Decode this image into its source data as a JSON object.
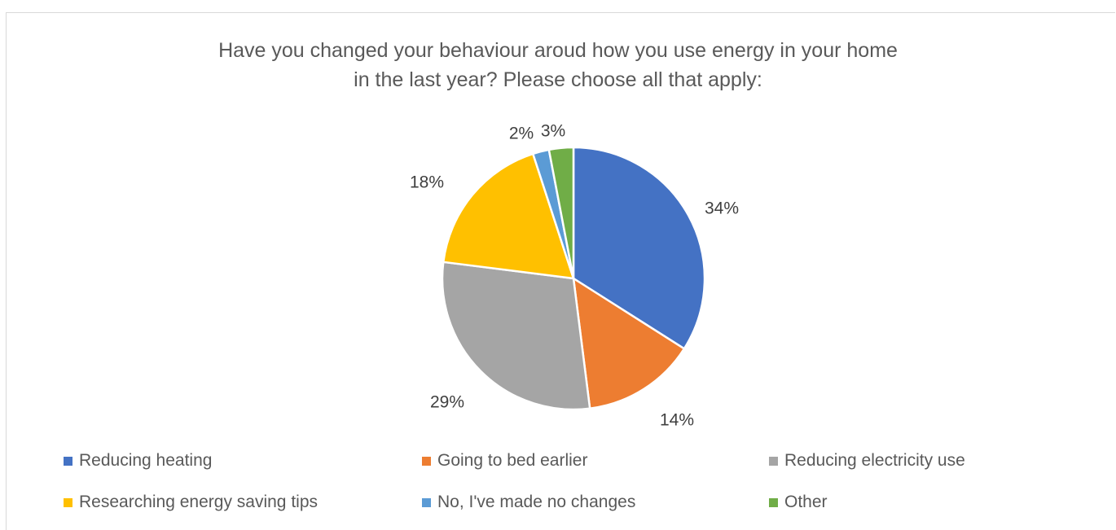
{
  "chart_data": {
    "type": "pie",
    "title_lines": [
      "Have you changed your behaviour aroud how you use energy in your home",
      "in the last year? Please choose all that apply:"
    ],
    "categories": [
      "Reducing heating",
      "Going to bed earlier",
      "Reducing electricity use",
      "Researching energy saving tips",
      "No, I've made no changes",
      "Other"
    ],
    "values": [
      34,
      14,
      29,
      18,
      2,
      3
    ],
    "data_labels": [
      "34%",
      "14%",
      "29%",
      "18%",
      "2%",
      "3%"
    ],
    "colors": [
      "#4472c4",
      "#ed7d31",
      "#a5a5a5",
      "#ffc000",
      "#5b9bd5",
      "#70ad47"
    ],
    "legend_position": "bottom",
    "start_angle": "12 o'clock",
    "direction": "clockwise"
  }
}
